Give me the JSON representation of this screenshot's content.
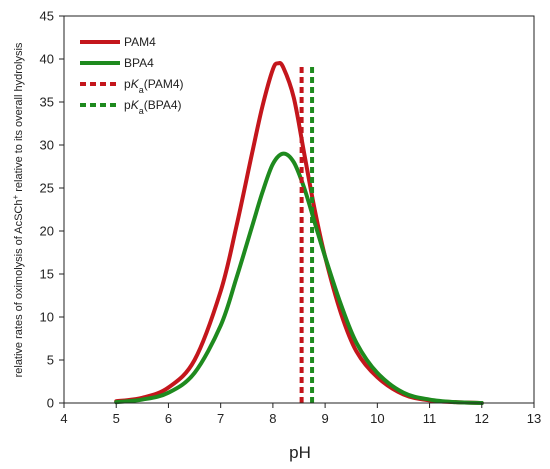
{
  "chart_data": {
    "type": "line",
    "xlabel": "pH",
    "ylabel": {
      "main": "relative rates of oximolysis of AcSCh",
      "sup": "+",
      "tail": " relative to its overall hydrolysis"
    },
    "xlim": [
      4,
      13
    ],
    "ylim": [
      0,
      45
    ],
    "xticks": [
      4,
      5,
      6,
      7,
      8,
      9,
      10,
      11,
      12,
      13
    ],
    "yticks": [
      0,
      5,
      10,
      15,
      20,
      25,
      30,
      35,
      40,
      45
    ],
    "grid": false,
    "legend_position": "top-left",
    "series": [
      {
        "name": "PAM4",
        "color": "#c4161c",
        "style": "solid",
        "x": [
          5.0,
          5.5,
          6.0,
          6.5,
          7.0,
          7.3,
          7.6,
          7.8,
          8.0,
          8.1,
          8.2,
          8.4,
          8.6,
          8.8,
          9.0,
          9.3,
          9.6,
          10.0,
          10.5,
          11.0,
          11.5,
          12.0
        ],
        "values": [
          0.2,
          0.6,
          1.8,
          5.0,
          13.0,
          20.5,
          29.0,
          34.5,
          38.8,
          39.5,
          39.0,
          35.5,
          29.0,
          22.5,
          17.0,
          10.5,
          6.0,
          3.0,
          1.0,
          0.3,
          0.1,
          0.0
        ]
      },
      {
        "name": "BPA4",
        "color": "#1e8a1e",
        "style": "solid",
        "x": [
          5.0,
          5.5,
          6.0,
          6.5,
          7.0,
          7.3,
          7.6,
          7.8,
          8.0,
          8.2,
          8.4,
          8.6,
          8.8,
          9.0,
          9.3,
          9.6,
          10.0,
          10.5,
          11.0,
          11.5,
          12.0
        ],
        "values": [
          0.1,
          0.4,
          1.2,
          3.5,
          9.0,
          14.5,
          20.5,
          24.5,
          27.8,
          29.0,
          28.0,
          25.0,
          21.0,
          17.0,
          11.5,
          7.0,
          3.5,
          1.2,
          0.4,
          0.1,
          0.0
        ]
      },
      {
        "name": "pKa(PAM4)",
        "legend_label": {
          "pre": "p",
          "italic": "K",
          "sub": "a",
          "post": "(PAM4)"
        },
        "color": "#c4161c",
        "style": "dashed",
        "x": [
          8.55,
          8.55
        ],
        "values": [
          0,
          39.5
        ]
      },
      {
        "name": "pKa(BPA4)",
        "legend_label": {
          "pre": "p",
          "italic": "K",
          "sub": "a",
          "post": "(BPA4)"
        },
        "color": "#1e8a1e",
        "style": "dashed",
        "x": [
          8.75,
          8.75
        ],
        "values": [
          0,
          39.5
        ]
      }
    ]
  }
}
